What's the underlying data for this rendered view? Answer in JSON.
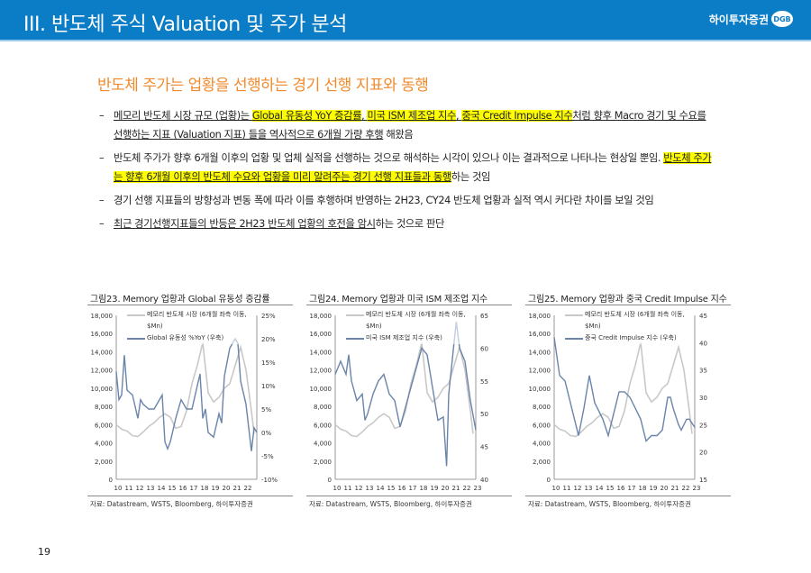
{
  "header": {
    "title": "III. 반도체 주식 Valuation 및 주가 분석",
    "logo_text": "하이투자증권",
    "logo_badge": "DGB",
    "color": "#0b7cc6"
  },
  "subtitle": "반도체 주가는 업황을 선행하는 경기 선행 지표와 동행",
  "bullets": [
    {
      "segments": [
        {
          "text": "메모리 반도체 시장 규모 (업황)는 ",
          "hl": false,
          "ul": true
        },
        {
          "text": "Global 유동성 YoY 증감률",
          "hl": true,
          "ul": true
        },
        {
          "text": ", ",
          "hl": false,
          "ul": true
        },
        {
          "text": "미국 ISM 제조업 지수",
          "hl": true,
          "ul": true
        },
        {
          "text": ", ",
          "hl": false,
          "ul": true
        },
        {
          "text": "중국 Credit Impulse 지수",
          "hl": true,
          "ul": true
        },
        {
          "text": "처럼 향후 Macro 경기 및 수요를 선행하는 지표 (Valuation 지표) 들을 역사적으로 6개월 가량 후행",
          "hl": false,
          "ul": true
        },
        {
          "text": " 해왔음",
          "hl": false,
          "ul": false
        }
      ]
    },
    {
      "segments": [
        {
          "text": "반도체 주가가 향후 6개월 이후의 업황 및 업체 실적을 선행하는 것으로 해석하는 시각이 있으나 이는 결과적으로 나타나는 현상일 뿐임. ",
          "hl": false,
          "ul": false
        },
        {
          "text": "반도체 주가는 향후 6개월 이후의 반도체 수요와 업황을 미리 알려주는 경기 선행 지표들과 동행",
          "hl": true,
          "ul": true
        },
        {
          "text": "하는 것임",
          "hl": false,
          "ul": false
        }
      ]
    },
    {
      "segments": [
        {
          "text": "경기 선행 지표들의 방향성과 변동 폭에 따라 이를 후행하며 반영하는 2H23, CY24 반도체 업황과 실적 역시 커다란 차이를 보일 것임",
          "hl": false,
          "ul": false
        }
      ]
    },
    {
      "segments": [
        {
          "text": "최근 경기선행지표들의 반등은 2H23 반도체 업황의 호전을 암시",
          "hl": false,
          "ul": true
        },
        {
          "text": "하는 것으로 판단",
          "hl": false,
          "ul": false
        }
      ]
    }
  ],
  "chart_data": [
    {
      "type": "line",
      "title": "그림23. Memory 업황과 Global 유동성 증감률",
      "source": "자료: Datastream, WSTS, Bloomberg, 하이투자증권",
      "x_ticks": [
        "10",
        "11",
        "12",
        "13",
        "14",
        "15",
        "16",
        "17",
        "18",
        "19",
        "20",
        "21",
        "22"
      ],
      "xlim": [
        2010,
        2023
      ],
      "left_axis": {
        "ylim": [
          0,
          18000
        ],
        "ticks": [
          "0",
          "2,000",
          "4,000",
          "6,000",
          "8,000",
          "10,000",
          "12,000",
          "14,000",
          "16,000",
          "18,000"
        ]
      },
      "right_axis": {
        "ylim": [
          -10,
          25
        ],
        "ticks": [
          "-10%",
          "-5%",
          "0%",
          "5%",
          "10%",
          "15%",
          "20%",
          "25%"
        ]
      },
      "legend_placement": "top",
      "series": [
        {
          "name": "메모리 반도체 시장 (6개월 좌측 이동, $Mn)",
          "axis": "left",
          "color": "#c8c8c8",
          "x": [
            2010,
            2010.5,
            2011,
            2011.5,
            2012,
            2012.5,
            2013,
            2013.5,
            2014,
            2014.5,
            2015,
            2015.5,
            2016,
            2016.5,
            2017,
            2017.5,
            2018,
            2018.5,
            2019,
            2019.5,
            2020,
            2020.5,
            2021,
            2021.5,
            2022,
            2022.5,
            2022.75
          ],
          "y": [
            6000,
            5500,
            5300,
            4800,
            4700,
            5200,
            5800,
            6200,
            6800,
            7200,
            6800,
            5600,
            5800,
            7500,
            10500,
            12500,
            15000,
            9500,
            8500,
            9000,
            10000,
            10500,
            12500,
            14500,
            12000,
            7500,
            5000
          ]
        },
        {
          "name": "Global 유동성 %YoY (우축)",
          "axis": "right",
          "color": "#6a84aa",
          "x": [
            2010,
            2010.25,
            2010.5,
            2010.75,
            2011,
            2011.5,
            2012,
            2012.25,
            2012.5,
            2013,
            2013.5,
            2014,
            2014.25,
            2014.5,
            2014.75,
            2015,
            2015.5,
            2016,
            2016.5,
            2017,
            2017.5,
            2017.75,
            2018,
            2018.25,
            2018.5,
            2019,
            2019.5,
            2019.75,
            2020,
            2020.5,
            2021,
            2021.25,
            2021.5,
            2022,
            2022.25,
            2022.5,
            2022.75,
            2023
          ],
          "y": [
            13,
            7,
            8,
            16.5,
            9,
            8,
            3,
            7,
            6,
            5,
            5,
            7,
            8,
            -2,
            -3.5,
            -2,
            3,
            7,
            5,
            5,
            10,
            12.5,
            3,
            5,
            0,
            -1,
            4,
            2,
            12,
            18,
            20,
            19,
            11,
            6,
            1,
            -4,
            1,
            0
          ]
        }
      ]
    },
    {
      "type": "line",
      "title": "그림24. Memory 업황과 미국 ISM 제조업 지수",
      "source": "자료: Datastream, WSTS, Bloomberg, 하이투자증권",
      "x_ticks": [
        "10",
        "11",
        "12",
        "13",
        "14",
        "15",
        "16",
        "17",
        "18",
        "19",
        "20",
        "21",
        "22",
        "23"
      ],
      "xlim": [
        2010,
        2023
      ],
      "left_axis": {
        "ylim": [
          0,
          18000
        ],
        "ticks": [
          "0",
          "2,000",
          "4,000",
          "6,000",
          "8,000",
          "10,000",
          "12,000",
          "14,000",
          "16,000",
          "18,000"
        ]
      },
      "right_axis": {
        "ylim": [
          40,
          65
        ],
        "ticks": [
          "40",
          "45",
          "50",
          "55",
          "60",
          "65"
        ]
      },
      "legend_placement": "top",
      "series": [
        {
          "name": "메모리 반도체 시장 (6개월 좌측 이동, $Mn)",
          "axis": "left",
          "color": "#c8c8c8",
          "x": [
            2010,
            2010.5,
            2011,
            2011.5,
            2012,
            2012.5,
            2013,
            2013.5,
            2014,
            2014.5,
            2015,
            2015.5,
            2016,
            2016.5,
            2017,
            2017.5,
            2018,
            2018.5,
            2019,
            2019.5,
            2020,
            2020.5,
            2021,
            2021.5,
            2022,
            2022.5,
            2022.75
          ],
          "y": [
            6000,
            5500,
            5300,
            4800,
            4700,
            5200,
            5800,
            6200,
            6800,
            7200,
            6800,
            5600,
            5800,
            7500,
            10500,
            12500,
            15000,
            9500,
            8500,
            9000,
            10000,
            10500,
            12500,
            14500,
            12000,
            7500,
            5000
          ]
        },
        {
          "name": "미국 ISM 제조업 지수 (우축)",
          "axis": "right",
          "color": "#6a84aa",
          "x": [
            2010,
            2010.5,
            2011,
            2011.25,
            2011.5,
            2012,
            2012.5,
            2012.75,
            2013,
            2013.5,
            2014,
            2014.5,
            2015,
            2015.5,
            2016,
            2016.5,
            2017,
            2017.5,
            2018,
            2018.5,
            2019,
            2019.5,
            2020,
            2020.3,
            2020.5,
            2021,
            2021.2,
            2021.5,
            2022,
            2022.5,
            2023
          ],
          "y": [
            56,
            58,
            56,
            59,
            55,
            52,
            53,
            49,
            50,
            53,
            55,
            56,
            53,
            52,
            48,
            51,
            54,
            57,
            60,
            59,
            54,
            49,
            49.5,
            42,
            53,
            61,
            64,
            60,
            58,
            52,
            47.5
          ]
        }
      ]
    },
    {
      "type": "line",
      "title": "그림25. Memory 업황과 중국 Credit Impulse 지수",
      "source": "자료: Datastream, WSTS, Bloomberg, 하이투자증권",
      "x_ticks": [
        "10",
        "11",
        "12",
        "13",
        "14",
        "15",
        "16",
        "17",
        "18",
        "19",
        "20",
        "21",
        "22",
        "23"
      ],
      "xlim": [
        2010,
        2023
      ],
      "left_axis": {
        "ylim": [
          0,
          18000
        ],
        "ticks": [
          "0",
          "2,000",
          "4,000",
          "6,000",
          "8,000",
          "10,000",
          "12,000",
          "14,000",
          "16,000",
          "18,000"
        ]
      },
      "right_axis": {
        "ylim": [
          15,
          45
        ],
        "ticks": [
          "15",
          "20",
          "25",
          "30",
          "35",
          "40",
          "45"
        ]
      },
      "legend_placement": "top",
      "series": [
        {
          "name": "메모리 반도체 시장 (6개월 좌측 이동, $Mn)",
          "axis": "left",
          "color": "#c8c8c8",
          "x": [
            2010,
            2010.5,
            2011,
            2011.5,
            2012,
            2012.5,
            2013,
            2013.5,
            2014,
            2014.5,
            2015,
            2015.5,
            2016,
            2016.5,
            2017,
            2017.5,
            2018,
            2018.5,
            2019,
            2019.5,
            2020,
            2020.5,
            2021,
            2021.5,
            2022,
            2022.5,
            2022.75
          ],
          "y": [
            6000,
            5500,
            5300,
            4800,
            4700,
            5200,
            5800,
            6200,
            6800,
            7200,
            6800,
            5600,
            5800,
            7500,
            10500,
            12500,
            15000,
            9500,
            8500,
            9000,
            10000,
            10500,
            12500,
            14500,
            12000,
            7500,
            5000
          ]
        },
        {
          "name": "중국 Credit Impulse 지수 (우축)",
          "axis": "right",
          "color": "#6a84aa",
          "x": [
            2010,
            2010.5,
            2011,
            2011.5,
            2012,
            2012.25,
            2012.75,
            2013.25,
            2013.75,
            2014,
            2014.5,
            2015,
            2015.5,
            2016,
            2016.5,
            2017,
            2017.5,
            2018,
            2018.5,
            2019,
            2019.5,
            2020,
            2020.5,
            2020.75,
            2021,
            2021.5,
            2021.75,
            2022.25,
            2022.5,
            2023
          ],
          "y": [
            41,
            34,
            33,
            29,
            25,
            23,
            28,
            34,
            29,
            28,
            26,
            23,
            27,
            31,
            31,
            30,
            28,
            26,
            22,
            23,
            23,
            24,
            30,
            30,
            28,
            25,
            24,
            26,
            26,
            24.5
          ]
        }
      ]
    }
  ],
  "page_number": "19"
}
